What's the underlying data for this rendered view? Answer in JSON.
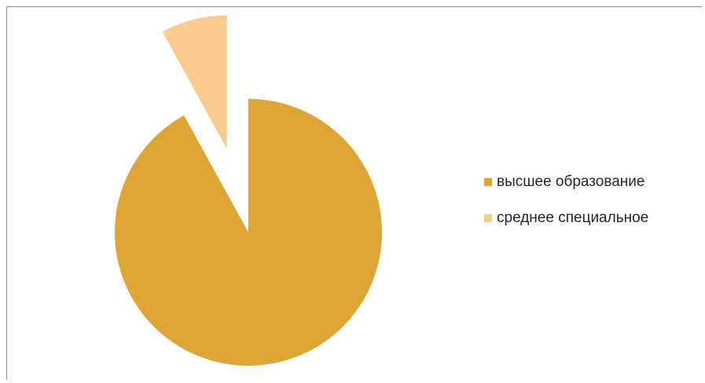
{
  "chart_data": {
    "type": "pie",
    "title": "",
    "categories": [
      "высшее образование",
      "среднее специальное"
    ],
    "values": [
      92,
      8
    ],
    "colors": [
      "#DEA435",
      "#F8CB8E"
    ],
    "exploded": [
      false,
      true
    ],
    "legend_position": "right"
  }
}
